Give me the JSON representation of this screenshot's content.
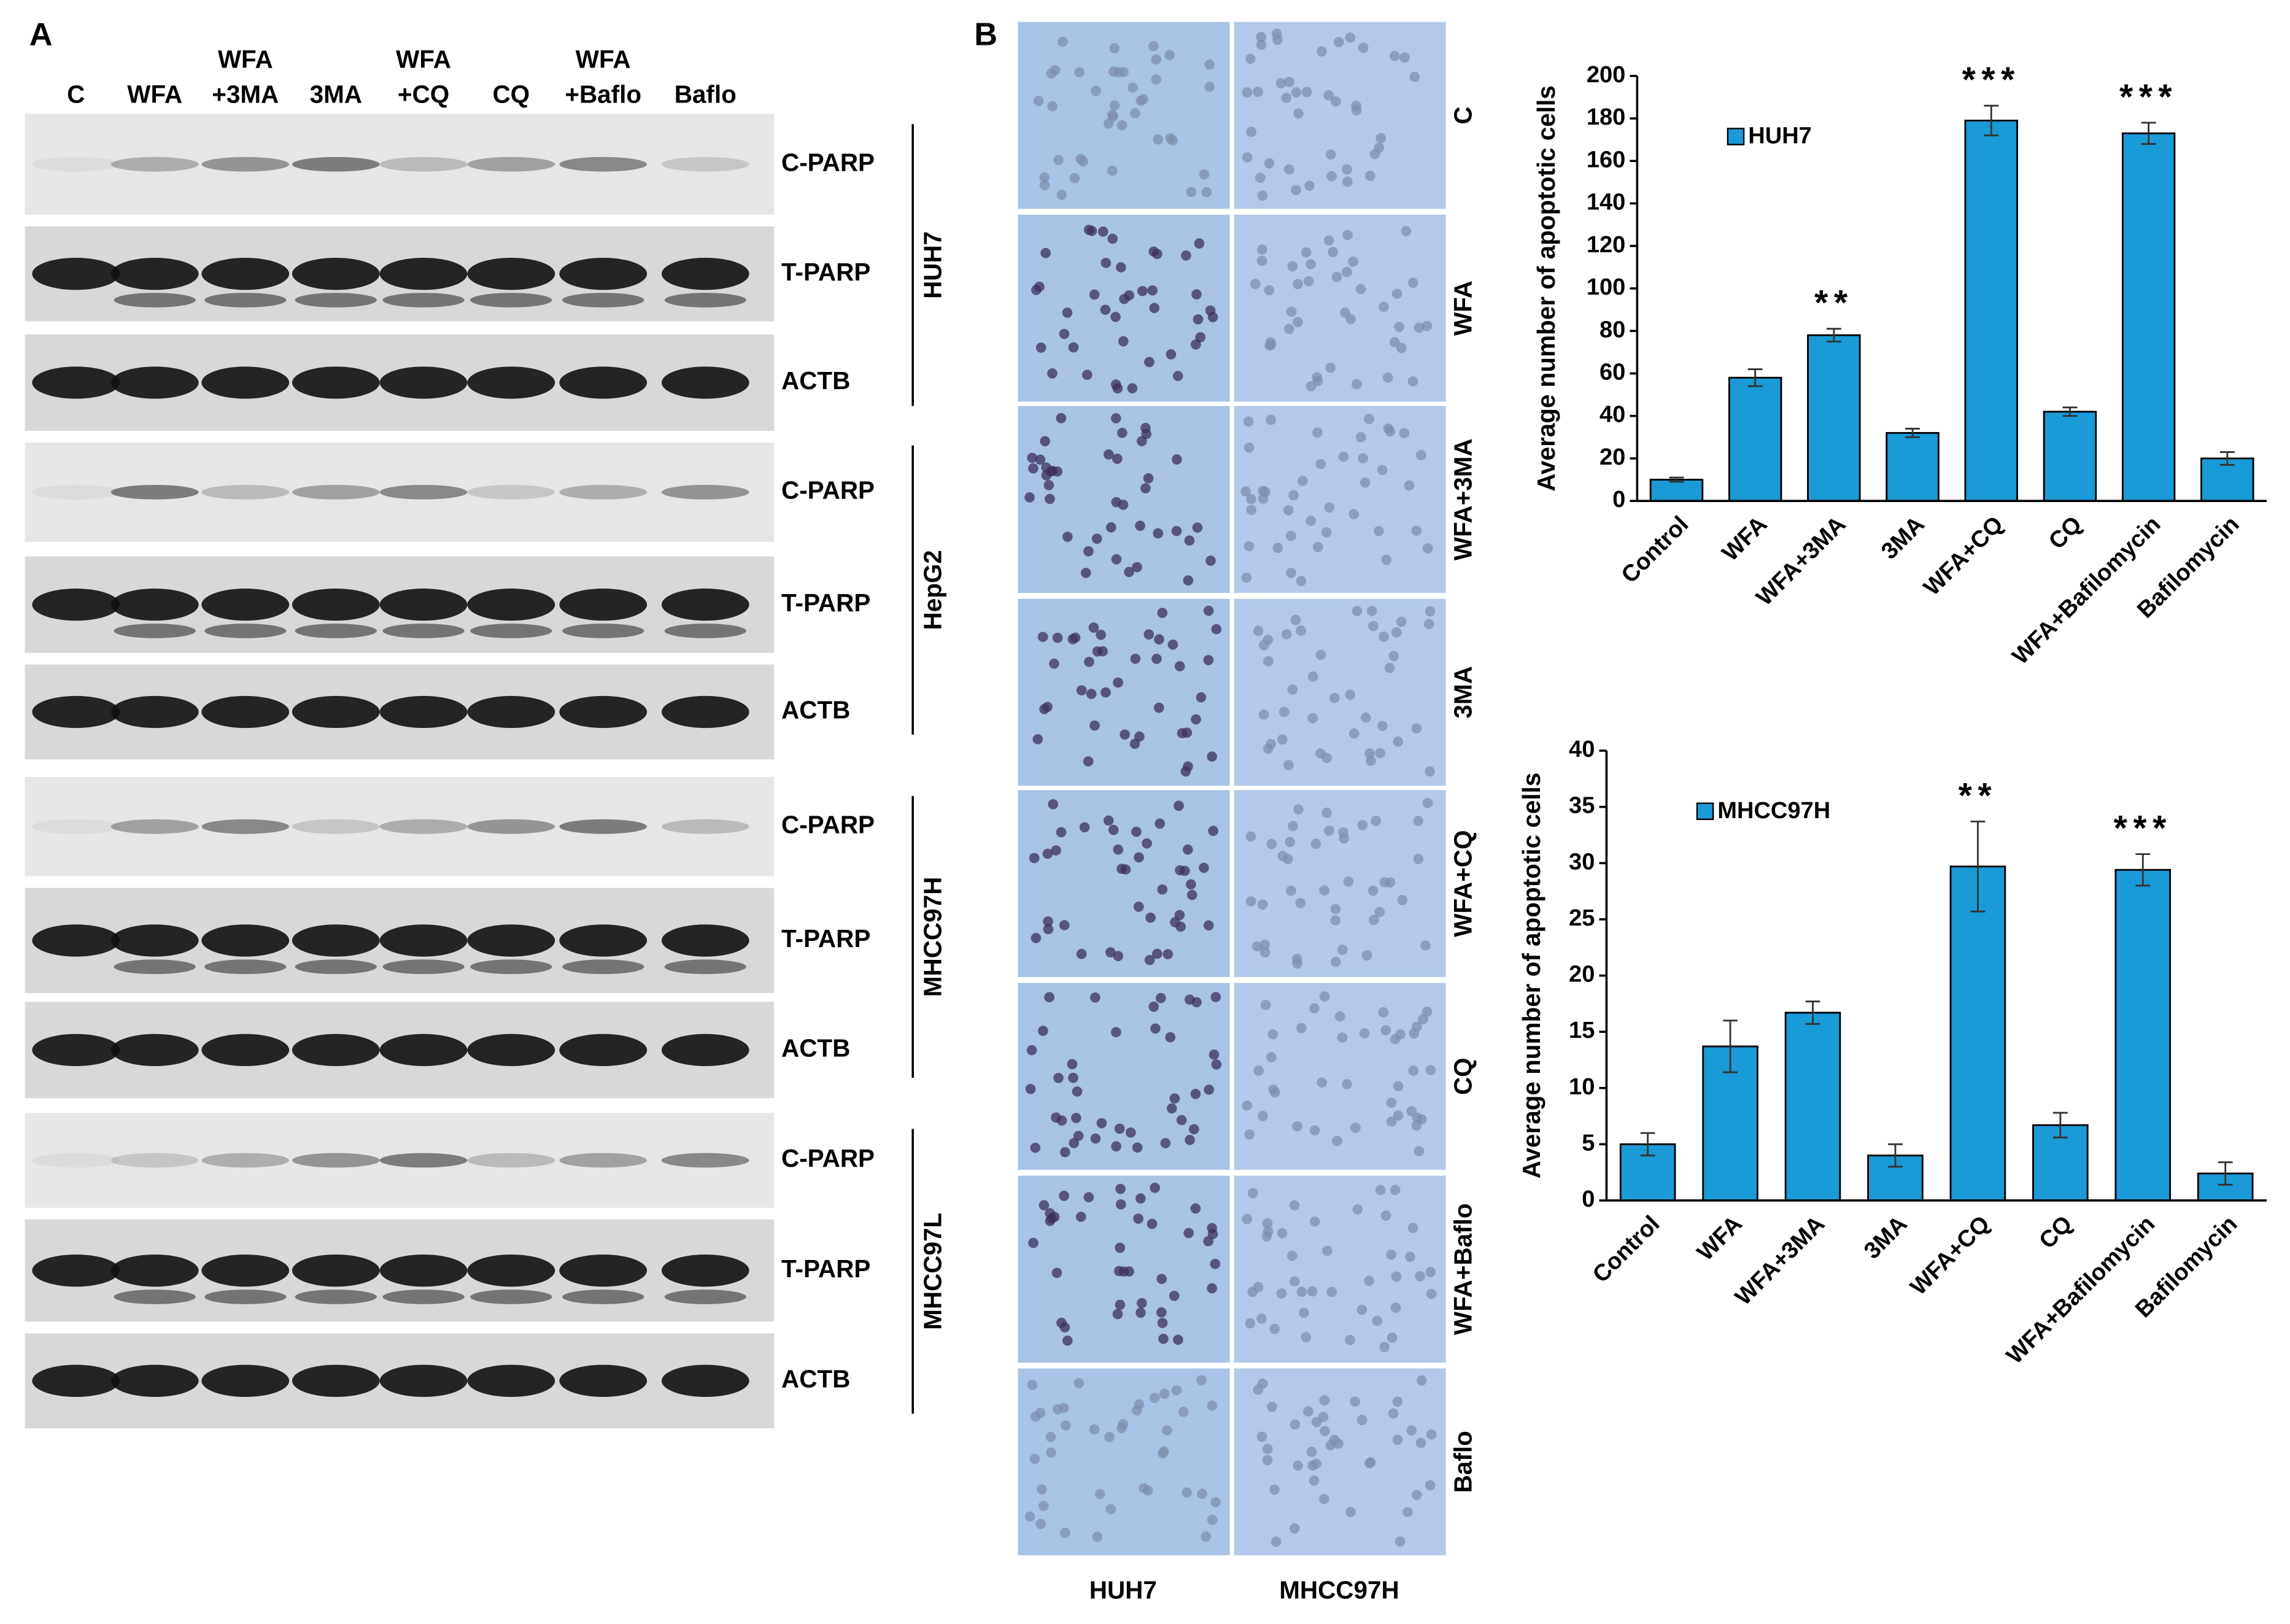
{
  "panel_a": {
    "label": "A",
    "lanes": [
      [
        "C"
      ],
      [
        "WFA"
      ],
      [
        "WFA",
        "+3MA"
      ],
      [
        "3MA"
      ],
      [
        "WFA",
        "+CQ"
      ],
      [
        "CQ"
      ],
      [
        "WFA",
        "+Baflo"
      ],
      [
        "Baflo"
      ]
    ],
    "groups": [
      {
        "cell_line": "HUH7",
        "rows": [
          "C-PARP",
          "T-PARP",
          "ACTB"
        ]
      },
      {
        "cell_line": "HepG2",
        "rows": [
          "C-PARP",
          "T-PARP",
          "ACTB"
        ]
      },
      {
        "cell_line": "MHCC97H",
        "rows": [
          "C-PARP",
          "T-PARP",
          "ACTB"
        ]
      },
      {
        "cell_line": "MHCC97L",
        "rows": [
          "C-PARP",
          "T-PARP",
          "ACTB"
        ]
      }
    ]
  },
  "panel_b": {
    "label": "B",
    "rows": [
      "C",
      "WFA",
      "WFA+3MA",
      "3MA",
      "WFA+CQ",
      "CQ",
      "WFA+Baflo",
      "Baflo"
    ],
    "columns": [
      "HUH7",
      "MHCC97H"
    ]
  },
  "chart_data": [
    {
      "type": "bar",
      "y_label": "Average number of apoptotic cells",
      "categories": [
        "Control",
        "WFA",
        "WFA+3MA",
        "3MA",
        "WFA+CQ",
        "CQ",
        "WFA+Bafilomycin",
        "Bafilomycin"
      ],
      "series": [
        {
          "name": "HUH7",
          "color": "#1a9ad6",
          "values": [
            10,
            58,
            78,
            32,
            179,
            42,
            173,
            20
          ],
          "errors": [
            1,
            4,
            3,
            2,
            7,
            2,
            5,
            3
          ],
          "significance": [
            null,
            null,
            "**",
            null,
            "***",
            null,
            "***",
            null
          ]
        }
      ],
      "ylim": [
        0,
        200
      ],
      "yticks": [
        0,
        20,
        40,
        60,
        80,
        100,
        120,
        140,
        160,
        180,
        200
      ],
      "legend": "upper left"
    },
    {
      "type": "bar",
      "y_label": "Average number of apoptotic cells",
      "categories": [
        "Control",
        "WFA",
        "WFA+3MA",
        "3MA",
        "WFA+CQ",
        "CQ",
        "WFA+Bafilomycin",
        "Bafilomycin"
      ],
      "series": [
        {
          "name": "MHCC97H",
          "color": "#1a9ad6",
          "values": [
            5,
            13.7,
            16.7,
            4,
            29.7,
            6.7,
            29.4,
            2.4
          ],
          "errors": [
            1,
            2.3,
            1,
            1,
            4,
            1.1,
            1.4,
            1
          ],
          "significance": [
            null,
            null,
            null,
            null,
            "**",
            null,
            "***",
            null
          ]
        }
      ],
      "ylim": [
        0,
        40
      ],
      "yticks": [
        0,
        5,
        10,
        15,
        20,
        25,
        30,
        35,
        40
      ],
      "legend": "upper left"
    }
  ]
}
